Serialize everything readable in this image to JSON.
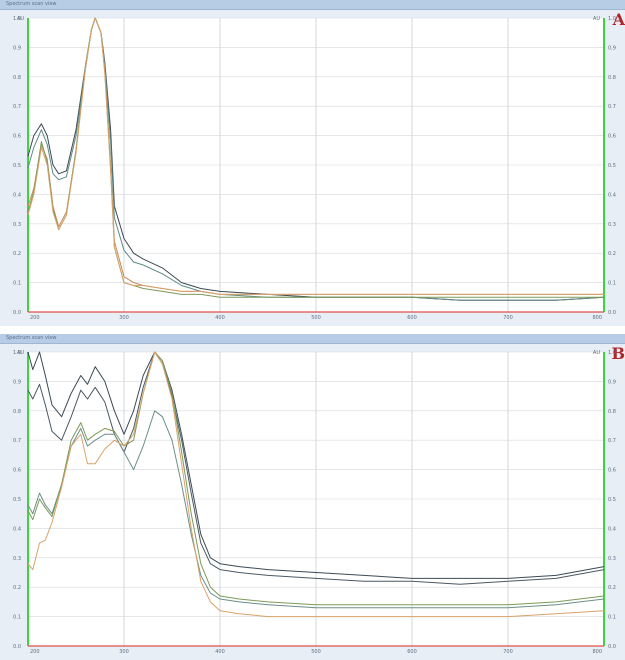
{
  "window_title": "Spectrum scan view",
  "chart_data": [
    {
      "type": "line",
      "panel_label": "A",
      "window_title": "Spectrum scan view",
      "xlabel": "",
      "ylabel": "",
      "y_unit": "AU",
      "y_unit_right": "AU",
      "xlim": [
        200,
        800
      ],
      "ylim": [
        0,
        1.0
      ],
      "x_ticks": [
        200,
        300,
        400,
        500,
        600,
        700,
        800
      ],
      "x_tick_labels": [
        "200",
        "300",
        "400",
        "500",
        "600",
        "700",
        "800"
      ],
      "y_ticks": [
        0,
        0.1,
        0.2,
        0.3,
        0.4,
        0.5,
        0.6,
        0.7,
        0.8,
        0.9,
        1.0
      ],
      "y_tick_labels": [
        "0.0",
        "0.1",
        "0.2",
        "0.3",
        "0.4",
        "0.5",
        "0.6",
        "0.7",
        "0.8",
        "0.9",
        "1.0"
      ],
      "grid": true,
      "colors": [
        "#3c4a55",
        "#5f8a86",
        "#c58a5a",
        "#7c9a58",
        "#d9a26a"
      ],
      "series": [
        {
          "x": [
            200,
            206,
            214,
            220,
            226,
            232,
            240,
            250,
            260,
            266,
            270,
            276,
            280,
            286,
            290,
            300,
            310,
            320,
            340,
            360,
            380,
            400,
            450,
            500,
            550,
            600,
            650,
            700,
            750,
            800
          ],
          "values": [
            0.53,
            0.6,
            0.64,
            0.6,
            0.5,
            0.47,
            0.48,
            0.62,
            0.84,
            0.96,
            1.0,
            0.95,
            0.85,
            0.62,
            0.36,
            0.25,
            0.2,
            0.18,
            0.15,
            0.1,
            0.08,
            0.07,
            0.06,
            0.05,
            0.05,
            0.05,
            0.04,
            0.04,
            0.04,
            0.05
          ]
        },
        {
          "x": [
            200,
            206,
            214,
            220,
            226,
            232,
            240,
            250,
            260,
            266,
            270,
            276,
            280,
            286,
            290,
            300,
            310,
            320,
            340,
            360,
            380,
            400,
            450,
            500,
            550,
            600,
            650,
            700,
            750,
            800
          ],
          "values": [
            0.49,
            0.56,
            0.62,
            0.57,
            0.47,
            0.45,
            0.46,
            0.6,
            0.83,
            0.96,
            1.0,
            0.95,
            0.84,
            0.58,
            0.32,
            0.21,
            0.17,
            0.16,
            0.13,
            0.09,
            0.07,
            0.06,
            0.05,
            0.05,
            0.05,
            0.05,
            0.04,
            0.04,
            0.04,
            0.05
          ]
        },
        {
          "x": [
            200,
            206,
            214,
            220,
            226,
            232,
            240,
            250,
            260,
            266,
            270,
            276,
            280,
            286,
            290,
            300,
            310,
            320,
            340,
            360,
            380,
            400,
            450,
            500,
            550,
            600,
            650,
            700,
            750,
            800
          ],
          "values": [
            0.36,
            0.42,
            0.57,
            0.52,
            0.36,
            0.29,
            0.34,
            0.55,
            0.84,
            0.96,
            1.0,
            0.95,
            0.82,
            0.5,
            0.24,
            0.12,
            0.1,
            0.09,
            0.08,
            0.07,
            0.07,
            0.06,
            0.06,
            0.06,
            0.06,
            0.06,
            0.06,
            0.06,
            0.06,
            0.06
          ]
        },
        {
          "x": [
            200,
            206,
            214,
            220,
            226,
            232,
            240,
            250,
            260,
            266,
            270,
            276,
            280,
            286,
            290,
            300,
            310,
            320,
            340,
            360,
            380,
            400,
            450,
            500,
            550,
            600,
            650,
            700,
            750,
            800
          ],
          "values": [
            0.34,
            0.41,
            0.58,
            0.51,
            0.35,
            0.28,
            0.33,
            0.55,
            0.84,
            0.96,
            1.0,
            0.95,
            0.82,
            0.49,
            0.22,
            0.1,
            0.09,
            0.08,
            0.07,
            0.06,
            0.06,
            0.05,
            0.05,
            0.05,
            0.05,
            0.05,
            0.05,
            0.05,
            0.05,
            0.05
          ]
        },
        {
          "x": [
            200,
            206,
            214,
            220,
            226,
            232,
            240,
            250,
            260,
            266,
            270,
            276,
            280,
            286,
            290,
            300,
            310,
            320,
            340,
            360,
            380,
            400,
            450,
            500,
            550,
            600,
            650,
            700,
            750,
            800
          ],
          "values": [
            0.33,
            0.4,
            0.56,
            0.5,
            0.34,
            0.28,
            0.33,
            0.54,
            0.83,
            0.96,
            1.0,
            0.95,
            0.81,
            0.48,
            0.22,
            0.1,
            0.09,
            0.09,
            0.08,
            0.07,
            0.07,
            0.06,
            0.06,
            0.06,
            0.06,
            0.06,
            0.06,
            0.06,
            0.06,
            0.06
          ]
        }
      ]
    },
    {
      "type": "line",
      "panel_label": "B",
      "window_title": "Spectrum scan view",
      "xlabel": "",
      "ylabel": "",
      "y_unit": "AU",
      "y_unit_right": "AU",
      "xlim": [
        200,
        800
      ],
      "ylim": [
        0,
        1.0
      ],
      "x_ticks": [
        200,
        300,
        400,
        500,
        600,
        700,
        800
      ],
      "x_tick_labels": [
        "200",
        "300",
        "400",
        "500",
        "600",
        "700",
        "800"
      ],
      "y_ticks": [
        0,
        0.1,
        0.2,
        0.3,
        0.4,
        0.5,
        0.6,
        0.7,
        0.8,
        0.9,
        1.0
      ],
      "y_tick_labels": [
        "0.0",
        "0.1",
        "0.2",
        "0.3",
        "0.4",
        "0.5",
        "0.6",
        "0.7",
        "0.8",
        "0.9",
        "1.0"
      ],
      "grid": true,
      "colors": [
        "#3c4a55",
        "#4b5964",
        "#6c8f88",
        "#7c9a58",
        "#d9a26a"
      ],
      "series": [
        {
          "x": [
            200,
            205,
            212,
            218,
            225,
            235,
            245,
            255,
            262,
            270,
            280,
            290,
            300,
            310,
            320,
            332,
            340,
            350,
            360,
            370,
            380,
            390,
            400,
            420,
            450,
            500,
            550,
            600,
            650,
            700,
            750,
            800
          ],
          "values": [
            1.0,
            0.94,
            1.0,
            0.92,
            0.82,
            0.78,
            0.86,
            0.92,
            0.89,
            0.95,
            0.9,
            0.8,
            0.72,
            0.8,
            0.92,
            1.0,
            0.97,
            0.87,
            0.72,
            0.55,
            0.38,
            0.3,
            0.28,
            0.27,
            0.26,
            0.25,
            0.24,
            0.23,
            0.23,
            0.23,
            0.24,
            0.27
          ]
        },
        {
          "x": [
            200,
            205,
            212,
            218,
            225,
            235,
            245,
            255,
            262,
            270,
            280,
            290,
            300,
            310,
            320,
            332,
            340,
            350,
            360,
            370,
            380,
            390,
            400,
            420,
            450,
            500,
            550,
            600,
            650,
            700,
            750,
            800
          ],
          "values": [
            0.87,
            0.84,
            0.89,
            0.82,
            0.73,
            0.7,
            0.78,
            0.87,
            0.84,
            0.88,
            0.83,
            0.72,
            0.66,
            0.74,
            0.88,
            1.0,
            0.96,
            0.85,
            0.7,
            0.52,
            0.35,
            0.28,
            0.26,
            0.25,
            0.24,
            0.23,
            0.22,
            0.22,
            0.21,
            0.22,
            0.23,
            0.26
          ]
        },
        {
          "x": [
            200,
            205,
            212,
            218,
            225,
            235,
            245,
            255,
            262,
            270,
            280,
            290,
            300,
            310,
            320,
            332,
            340,
            350,
            360,
            370,
            380,
            390,
            400,
            420,
            450,
            500,
            550,
            600,
            650,
            700,
            750,
            800
          ],
          "values": [
            0.48,
            0.45,
            0.52,
            0.48,
            0.45,
            0.55,
            0.68,
            0.74,
            0.68,
            0.7,
            0.72,
            0.72,
            0.66,
            0.6,
            0.68,
            0.8,
            0.78,
            0.7,
            0.55,
            0.38,
            0.24,
            0.18,
            0.16,
            0.15,
            0.14,
            0.13,
            0.13,
            0.13,
            0.13,
            0.13,
            0.14,
            0.16
          ]
        },
        {
          "x": [
            200,
            205,
            212,
            218,
            225,
            235,
            245,
            255,
            262,
            270,
            280,
            290,
            300,
            310,
            320,
            332,
            340,
            350,
            360,
            370,
            380,
            390,
            400,
            420,
            450,
            500,
            550,
            600,
            650,
            700,
            750,
            800
          ],
          "values": [
            0.46,
            0.43,
            0.5,
            0.47,
            0.44,
            0.55,
            0.7,
            0.76,
            0.7,
            0.72,
            0.74,
            0.73,
            0.68,
            0.7,
            0.86,
            1.0,
            0.97,
            0.86,
            0.66,
            0.45,
            0.28,
            0.2,
            0.17,
            0.16,
            0.15,
            0.14,
            0.14,
            0.14,
            0.14,
            0.14,
            0.15,
            0.17
          ]
        },
        {
          "x": [
            200,
            205,
            212,
            218,
            225,
            235,
            245,
            255,
            262,
            270,
            280,
            290,
            300,
            310,
            320,
            332,
            340,
            350,
            360,
            370,
            380,
            390,
            400,
            420,
            450,
            500,
            550,
            600,
            650,
            700,
            750,
            800
          ],
          "values": [
            0.28,
            0.26,
            0.35,
            0.36,
            0.42,
            0.54,
            0.68,
            0.72,
            0.62,
            0.62,
            0.67,
            0.7,
            0.68,
            0.72,
            0.86,
            1.0,
            0.96,
            0.84,
            0.62,
            0.4,
            0.22,
            0.15,
            0.12,
            0.11,
            0.1,
            0.1,
            0.1,
            0.1,
            0.1,
            0.1,
            0.11,
            0.12
          ]
        }
      ]
    }
  ]
}
